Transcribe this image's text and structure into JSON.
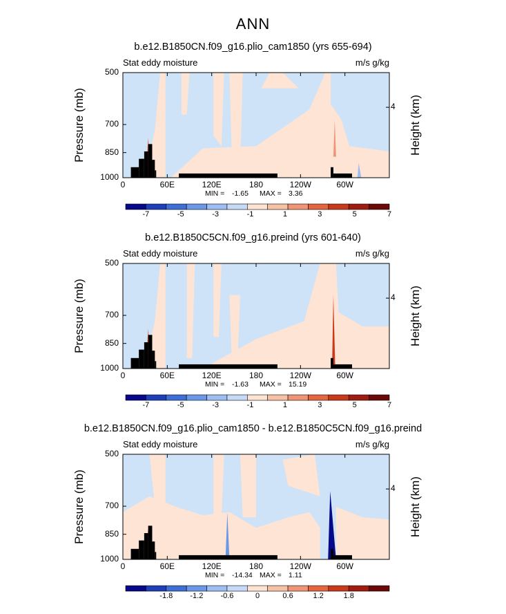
{
  "page_title": "ANN",
  "chart_data": [
    {
      "type": "heatmap",
      "title": "b.e12.B1850CN.f09_g16.plio_cam1850 (yrs 655-694)",
      "left_label": "Stat eddy moisture",
      "right_label": "m/s g/kg",
      "ylabel": "Pressure (mb)",
      "right_ylabel": "Height (km)",
      "yticks": [
        "500",
        "700",
        "850",
        "1000"
      ],
      "right_yticks": [
        "4"
      ],
      "xticks": [
        "0",
        "60E",
        "120E",
        "180",
        "120W",
        "60W"
      ],
      "min_label": "MIN =",
      "min_value": "-1.65",
      "max_label": "MAX =",
      "max_value": "3.36",
      "colorbar_ticks": [
        "-7",
        "-5",
        "-3",
        "-1",
        "1",
        "3",
        "5",
        "7"
      ]
    },
    {
      "type": "heatmap",
      "title": "b.e12.B1850C5CN.f09_g16.preind (yrs 601-640)",
      "left_label": "Stat eddy moisture",
      "right_label": "m/s g/kg",
      "ylabel": "Pressure (mb)",
      "right_ylabel": "Height (km)",
      "yticks": [
        "500",
        "700",
        "850",
        "1000"
      ],
      "right_yticks": [
        "4"
      ],
      "xticks": [
        "0",
        "60E",
        "120E",
        "180",
        "120W",
        "60W"
      ],
      "min_label": "MIN =",
      "min_value": "-1.63",
      "max_label": "MAX =",
      "max_value": "15.19",
      "colorbar_ticks": [
        "-7",
        "-5",
        "-3",
        "-1",
        "1",
        "3",
        "5",
        "7"
      ]
    },
    {
      "type": "heatmap",
      "title": "b.e12.B1850CN.f09_g16.plio_cam1850 - b.e12.B1850C5CN.f09_g16.preind",
      "left_label": "Stat eddy moisture",
      "right_label": "m/s g/kg",
      "ylabel": "Pressure (mb)",
      "right_ylabel": "Height (km)",
      "yticks": [
        "500",
        "700",
        "850",
        "1000"
      ],
      "right_yticks": [
        "4"
      ],
      "xticks": [
        "0",
        "60E",
        "120E",
        "180",
        "120W",
        "60W"
      ],
      "min_label": "MIN =",
      "min_value": "-14.34",
      "max_label": "MAX =",
      "max_value": "1.11",
      "colorbar_ticks": [
        "-1.8",
        "-1.2",
        "-0.6",
        "0",
        "0.6",
        "1.2",
        "1.8"
      ]
    }
  ],
  "colors": {
    "colorbar": [
      "#08088a",
      "#1f3fb8",
      "#3d6fd6",
      "#6b98e6",
      "#9ebdf2",
      "#c6daf8",
      "#fde3d2",
      "#f6c1a5",
      "#ef9474",
      "#e4653f",
      "#c93a1d",
      "#a01c10",
      "#6b0808"
    ],
    "neg_field": "#cfe3f8",
    "pos_field": "#fde4d4",
    "land": "#000000"
  }
}
